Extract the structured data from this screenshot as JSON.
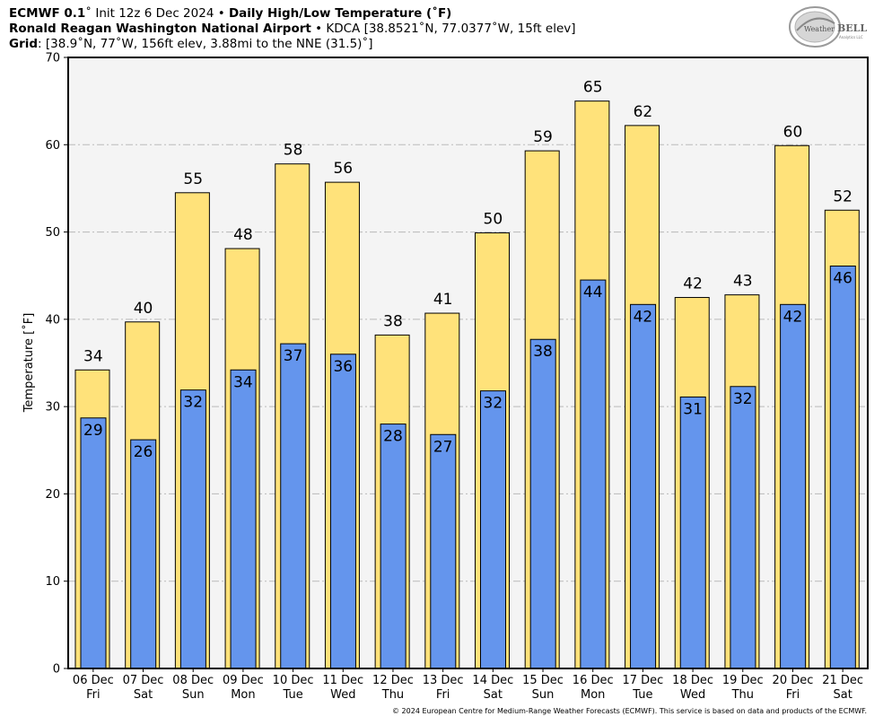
{
  "header": {
    "model": "ECMWF 0.1",
    "init": "˚ Init 12z 6 Dec 2024 • ",
    "product": "Daily High/Low Temperature (˚F)",
    "station_name": "Ronald Reagan Washington National Airport",
    "station_info": " • KDCA [38.8521˚N, 77.0377˚W, 15ft elev]",
    "grid_label": "Grid",
    "grid_info": ": [38.9˚N, 77˚W, 156ft elev, 3.88mi to the NNE (31.5)˚]"
  },
  "logo": {
    "text_left": "Weather",
    "text_right": "BELL",
    "sub": "Analytics LLC"
  },
  "credit": "© 2024 European Centre for Medium-Range Weather Forecasts (ECMWF). This service is based on data and products of the ECMWF.",
  "colors": {
    "high": "#ffe27a",
    "low": "#6495ed",
    "plot_bg": "#f4f4f4",
    "grid": "#b9b9b9"
  },
  "chart_data": {
    "type": "bar",
    "title": "Daily High/Low Temperature (˚F)",
    "xlabel": "",
    "ylabel": "Temperature [˚F]",
    "ylim": [
      0,
      70
    ],
    "yticks": [
      0,
      10,
      20,
      30,
      40,
      50,
      60,
      70
    ],
    "grid": true,
    "categories": [
      {
        "date": "06 Dec",
        "day": "Fri"
      },
      {
        "date": "07 Dec",
        "day": "Sat"
      },
      {
        "date": "08 Dec",
        "day": "Sun"
      },
      {
        "date": "09 Dec",
        "day": "Mon"
      },
      {
        "date": "10 Dec",
        "day": "Tue"
      },
      {
        "date": "11 Dec",
        "day": "Wed"
      },
      {
        "date": "12 Dec",
        "day": "Thu"
      },
      {
        "date": "13 Dec",
        "day": "Fri"
      },
      {
        "date": "14 Dec",
        "day": "Sat"
      },
      {
        "date": "15 Dec",
        "day": "Sun"
      },
      {
        "date": "16 Dec",
        "day": "Mon"
      },
      {
        "date": "17 Dec",
        "day": "Tue"
      },
      {
        "date": "18 Dec",
        "day": "Wed"
      },
      {
        "date": "19 Dec",
        "day": "Thu"
      },
      {
        "date": "20 Dec",
        "day": "Fri"
      },
      {
        "date": "21 Dec",
        "day": "Sat"
      }
    ],
    "series": [
      {
        "name": "High",
        "values": [
          34.2,
          39.7,
          54.5,
          48.1,
          57.8,
          55.7,
          38.2,
          40.7,
          49.9,
          59.3,
          65.0,
          62.2,
          42.5,
          42.8,
          59.9,
          52.5
        ],
        "labels": [
          "34",
          "40",
          "55",
          "48",
          "58",
          "56",
          "38",
          "41",
          "50",
          "59",
          "65",
          "62",
          "42",
          "43",
          "60",
          "52"
        ]
      },
      {
        "name": "Low",
        "values": [
          28.7,
          26.2,
          31.9,
          34.2,
          37.2,
          36.0,
          28.0,
          26.8,
          31.8,
          37.7,
          44.5,
          41.7,
          31.1,
          32.3,
          41.7,
          46.1
        ],
        "labels": [
          "29",
          "26",
          "32",
          "34",
          "37",
          "36",
          "28",
          "27",
          "32",
          "38",
          "44",
          "42",
          "31",
          "32",
          "42",
          "46"
        ]
      }
    ]
  }
}
